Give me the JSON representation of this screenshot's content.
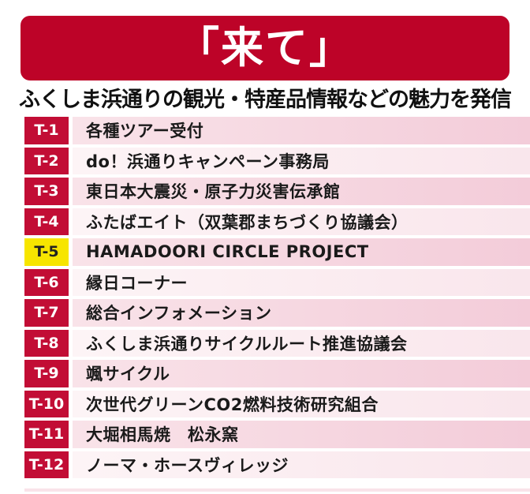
{
  "banner": {
    "title": "「来て」"
  },
  "subtitle": "ふくしま浜通りの観光・特産品情報などの魅力を発信",
  "list": {
    "items": [
      {
        "id": "T-1",
        "label": "各種ツアー受付",
        "highlight": false
      },
      {
        "id": "T-2",
        "label": "do！浜通りキャンペーン事務局",
        "highlight": false
      },
      {
        "id": "T-3",
        "label": "東日本大震災・原子力災害伝承館",
        "highlight": false
      },
      {
        "id": "T-4",
        "label": "ふたばエイト（双葉郡まちづくり協議会）",
        "highlight": false
      },
      {
        "id": "T-5",
        "label": "HAMADOORI CIRCLE PROJECT",
        "highlight": true
      },
      {
        "id": "T-6",
        "label": "縁日コーナー",
        "highlight": false
      },
      {
        "id": "T-7",
        "label": "総合インフォメーション",
        "highlight": false
      },
      {
        "id": "T-8",
        "label": "ふくしま浜通りサイクルルート推進協議会",
        "highlight": false
      },
      {
        "id": "T-9",
        "label": "颯サイクル",
        "highlight": false
      },
      {
        "id": "T-10",
        "label": "次世代グリーンCO2燃料技術研究組合",
        "highlight": false
      },
      {
        "id": "T-11",
        "label": "大堀相馬焼　松永窯",
        "highlight": false
      },
      {
        "id": "T-12",
        "label": "ノーマ・ホースヴィレッジ",
        "highlight": false
      }
    ]
  },
  "colors": {
    "banner_red": "#bd0328",
    "badge_red": "#c20d35",
    "highlight_yellow": "#f7e500",
    "row_pink_light": "#f9e3e9",
    "row_pink_strong": "#f3ccd9",
    "row_pale_light": "#fdf4f6",
    "row_pale_strong": "#f9e6ec",
    "text_dark": "#1a1a1a"
  }
}
